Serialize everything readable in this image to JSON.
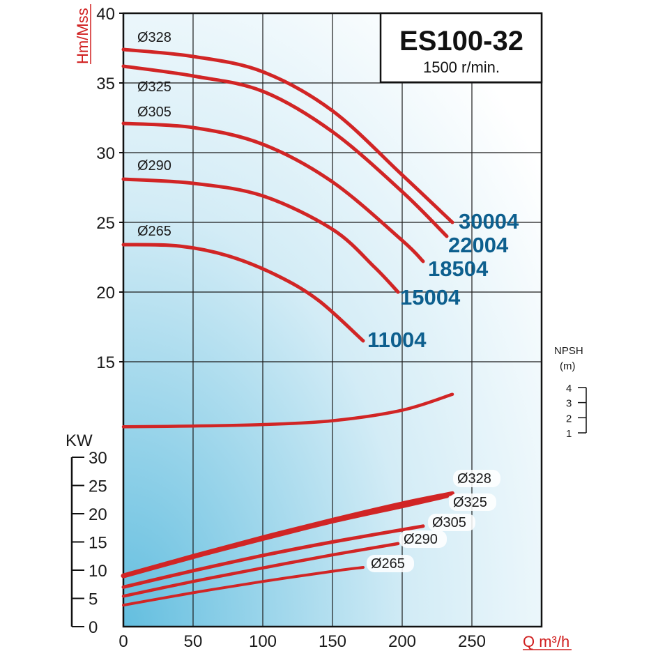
{
  "chart_data": {
    "type": "line",
    "title": "ES100-32",
    "subtitle": "1500 r/min.",
    "xlabel": "Q m³/h",
    "ylabel": "Hm/Mss",
    "xlim": [
      0,
      300
    ],
    "x_ticks": [
      "0",
      "50",
      "100",
      "150",
      "200",
      "250"
    ],
    "head_ylim": [
      9.5,
      40
    ],
    "head_ticks": [
      "15",
      "20",
      "25",
      "30",
      "35",
      "40"
    ],
    "grid": true,
    "head_curves": [
      {
        "name": "Ø328",
        "model": "30004",
        "x": [
          0,
          50,
          100,
          150,
          200,
          236
        ],
        "y": [
          37.4,
          36.9,
          35.8,
          33.0,
          28.4,
          25.0
        ]
      },
      {
        "name": "Ø325",
        "model": "22004",
        "x": [
          0,
          50,
          100,
          150,
          200,
          232
        ],
        "y": [
          36.2,
          35.5,
          34.4,
          31.5,
          27.2,
          24.0
        ]
      },
      {
        "name": "Ø305",
        "model": "18504",
        "x": [
          0,
          50,
          100,
          150,
          200,
          215
        ],
        "y": [
          32.1,
          31.8,
          30.6,
          27.9,
          23.7,
          22.2
        ]
      },
      {
        "name": "Ø290",
        "model": "15004",
        "x": [
          0,
          50,
          100,
          150,
          180,
          197
        ],
        "y": [
          28.1,
          27.8,
          26.9,
          24.5,
          21.8,
          20.0
        ]
      },
      {
        "name": "Ø265",
        "model": "11004",
        "x": [
          0,
          40,
          75,
          110,
          140,
          172
        ],
        "y": [
          23.4,
          23.3,
          22.6,
          21.2,
          19.4,
          16.5
        ]
      }
    ],
    "npsh_label": "NPSH",
    "npsh_unit": "(m)",
    "npsh_ticks": [
      "1",
      "2",
      "3",
      "4"
    ],
    "npsh_curve": {
      "x": [
        0,
        50,
        100,
        150,
        200,
        236
      ],
      "y": [
        1.4,
        1.45,
        1.55,
        1.8,
        2.5,
        3.55
      ]
    },
    "power_label": "KW",
    "power_ylim": [
      0,
      30
    ],
    "power_ticks": [
      "0",
      "5",
      "10",
      "15",
      "20",
      "25",
      "30"
    ],
    "power_curves": [
      {
        "name": "Ø328",
        "x": [
          0,
          50,
          100,
          150,
          200,
          236
        ],
        "y": [
          9.0,
          12.5,
          15.8,
          18.9,
          21.8,
          23.6
        ]
      },
      {
        "name": "Ø325",
        "x": [
          0,
          50,
          100,
          150,
          200,
          232
        ],
        "y": [
          9.0,
          12.4,
          15.6,
          18.7,
          21.4,
          23.2
        ]
      },
      {
        "name": "Ø305",
        "x": [
          0,
          50,
          100,
          150,
          215
        ],
        "y": [
          7.0,
          9.9,
          12.6,
          15.0,
          17.8
        ]
      },
      {
        "name": "Ø290",
        "x": [
          0,
          50,
          100,
          150,
          197
        ],
        "y": [
          5.4,
          8.0,
          10.4,
          12.7,
          14.7
        ]
      },
      {
        "name": "Ø265",
        "x": [
          0,
          50,
          100,
          150,
          172
        ],
        "y": [
          3.8,
          6.0,
          8.0,
          9.8,
          10.5
        ]
      }
    ]
  }
}
